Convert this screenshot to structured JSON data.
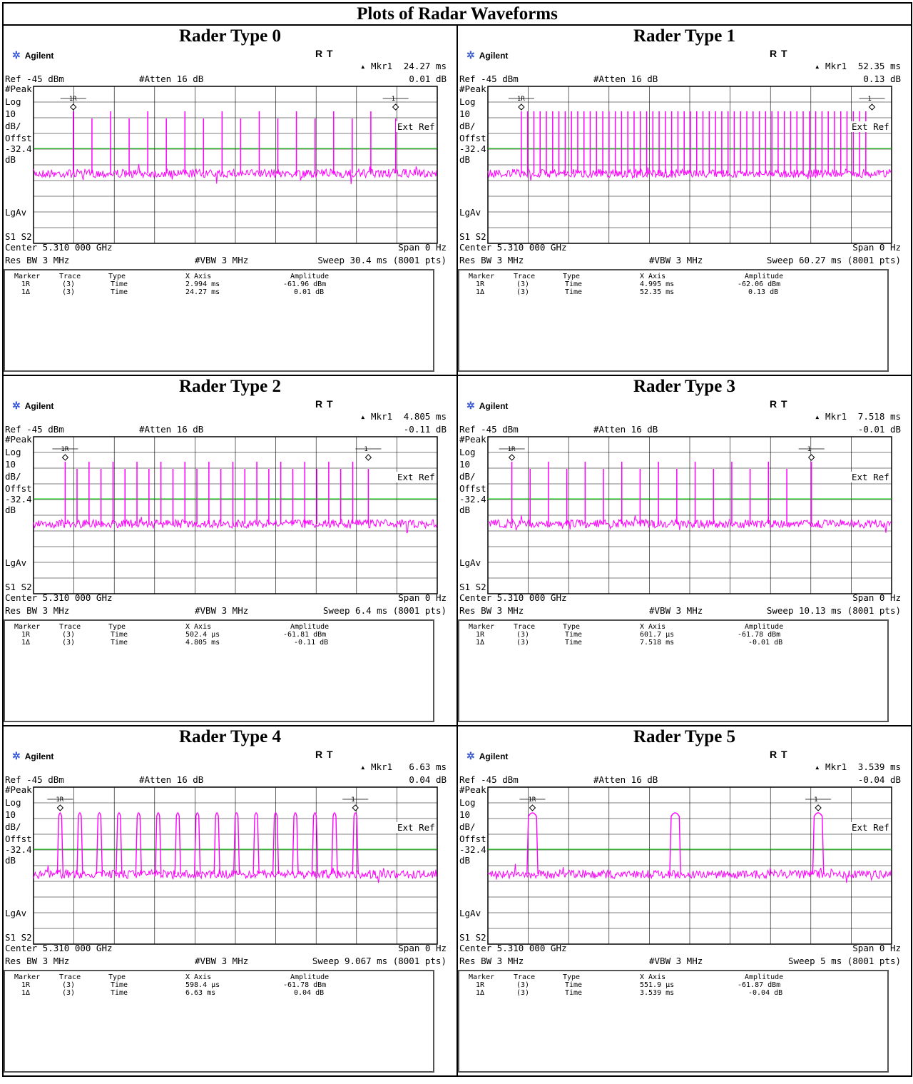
{
  "title": "Plots of Radar Waveforms",
  "common": {
    "brand": "Agilent",
    "status": "R  T",
    "delta_prefix": "▴ Mkr1",
    "ref": "Ref -45 dBm",
    "atten": "#Atten 16 dB",
    "peak": "#Peak",
    "log": "Log",
    "ten": "10",
    "dbdiv": "dB/",
    "offst": "Offst",
    "offst_val": "-32.4",
    "db": "dB",
    "lgav": "LgAv",
    "s1s2": "S1  S2",
    "center": "Center 5.310 000 GHz",
    "span": "Span 0 Hz",
    "resbw": "Res BW 3 MHz",
    "vbw": "#VBW 3 MHz",
    "extref": "Ext Ref",
    "marker_1r": "1R",
    "marker_1": "1",
    "trace_color": "#ff00ff",
    "threshold_color": "#00cc00",
    "table_headers": [
      "Marker",
      "Trace",
      "Type",
      "X Axis",
      "Amplitude"
    ],
    "rows_marker": [
      "1R",
      "1Δ"
    ],
    "rows_trace": [
      "(3)",
      "(3)"
    ],
    "rows_type": [
      "Time",
      "Time"
    ]
  },
  "panels": [
    {
      "title": "Rader Type 0",
      "mkr_time": "24.27 ms",
      "mkr_db": "0.01 dB",
      "sweep": "Sweep 30.4 ms (8001 pts)",
      "x1": "2.994 ms",
      "x2": "24.27 ms",
      "a1": "-61.96 dBm",
      "a2": "0.01 dB"
    },
    {
      "title": "Rader Type 1",
      "mkr_time": "52.35 ms",
      "mkr_db": "0.13 dB",
      "sweep": "Sweep 60.27 ms (8001 pts)",
      "x1": "4.995 ms",
      "x2": "52.35 ms",
      "a1": "-62.06 dBm",
      "a2": "0.13 dB"
    },
    {
      "title": "Rader Type 2",
      "mkr_time": "4.805 ms",
      "mkr_db": "-0.11 dB",
      "sweep": "Sweep 6.4 ms (8001 pts)",
      "x1": "502.4 μs",
      "x2": "4.805 ms",
      "a1": "-61.81 dBm",
      "a2": "-0.11 dB"
    },
    {
      "title": "Rader Type 3",
      "mkr_time": "7.518 ms",
      "mkr_db": "-0.01 dB",
      "sweep": "Sweep 10.13 ms (8001 pts)",
      "x1": "601.7 μs",
      "x2": "7.518 ms",
      "a1": "-61.78 dBm",
      "a2": "-0.01 dB"
    },
    {
      "title": "Rader Type 4",
      "mkr_time": "6.63 ms",
      "mkr_db": "0.04 dB",
      "sweep": "Sweep 9.067 ms (8001 pts)",
      "x1": "598.4 μs",
      "x2": "6.63 ms",
      "a1": "-61.78 dBm",
      "a2": "0.04 dB"
    },
    {
      "title": "Rader Type 5",
      "mkr_time": "3.539 ms",
      "mkr_db": "-0.04 dB",
      "sweep": "Sweep 5 ms (8001 pts)",
      "x1": "551.9 μs",
      "x2": "3.539 ms",
      "a1": "-61.87 dBm",
      "a2": "-0.04 dB"
    }
  ],
  "chart_data": [
    {
      "type": "line",
      "title": "Rader Type 0",
      "xlabel": "Time",
      "ylabel": "dB",
      "xlim": [
        0,
        30.4
      ],
      "x_unit": "ms",
      "markers": [
        {
          "label": "1R",
          "x": 2.994,
          "amplitude_dbm": -61.96
        },
        {
          "label": "1",
          "x": 27.264,
          "delta_db": 0.01
        }
      ],
      "pulse_times_ms": [
        2.994,
        4.4,
        5.8,
        7.2,
        8.6,
        10.0,
        11.4,
        12.8,
        14.2,
        15.6,
        17.0,
        18.4,
        19.8,
        21.2,
        22.6,
        24.0,
        25.4,
        27.264
      ],
      "threshold_offset_db": -32.4
    },
    {
      "type": "line",
      "title": "Rader Type 1",
      "xlabel": "Time",
      "ylabel": "dB",
      "xlim": [
        0,
        60.27
      ],
      "x_unit": "ms",
      "markers": [
        {
          "label": "1R",
          "x": 4.995,
          "amplitude_dbm": -62.06
        },
        {
          "label": "1",
          "x": 57.345,
          "delta_db": 0.13
        }
      ],
      "pulse_interval_ms": 0.935,
      "threshold_offset_db": -32.4
    },
    {
      "type": "line",
      "title": "Rader Type 2",
      "xlabel": "Time",
      "ylabel": "dB",
      "xlim": [
        0,
        6.4
      ],
      "x_unit": "ms",
      "markers": [
        {
          "label": "1R",
          "x": 0.5024,
          "amplitude_dbm": -61.81
        },
        {
          "label": "1",
          "x": 5.3074,
          "delta_db": -0.11
        }
      ],
      "pulse_times_ms": [
        0.5024,
        0.69,
        0.88,
        1.07,
        1.26,
        1.45,
        1.64,
        1.83,
        2.02,
        2.21,
        2.4,
        2.59,
        2.78,
        2.97,
        3.16,
        3.35,
        3.54,
        3.73,
        3.92,
        4.11,
        4.3,
        4.49,
        4.68,
        4.87,
        5.06,
        5.3074
      ],
      "threshold_offset_db": -32.4
    },
    {
      "type": "line",
      "title": "Rader Type 3",
      "xlabel": "Time",
      "ylabel": "dB",
      "xlim": [
        0,
        10.13
      ],
      "x_unit": "ms",
      "markers": [
        {
          "label": "1R",
          "x": 0.6017,
          "amplitude_dbm": -61.78
        },
        {
          "label": "1",
          "x": 8.1197,
          "delta_db": -0.01
        }
      ],
      "pulse_times_ms": [
        0.6017,
        1.06,
        1.52,
        1.98,
        2.44,
        2.9,
        3.36,
        3.82,
        4.28,
        4.74,
        5.2,
        5.66,
        6.12,
        6.58,
        7.04,
        7.5,
        8.1197
      ],
      "threshold_offset_db": -32.4
    },
    {
      "type": "line",
      "title": "Rader Type 4",
      "xlabel": "Time",
      "ylabel": "dB",
      "xlim": [
        0,
        9.067
      ],
      "x_unit": "ms",
      "markers": [
        {
          "label": "1R",
          "x": 0.5984,
          "amplitude_dbm": -61.78
        },
        {
          "label": "1",
          "x": 7.2284,
          "delta_db": 0.04
        }
      ],
      "pulse_times_ms": [
        0.5984,
        1.04,
        1.48,
        1.92,
        2.36,
        2.8,
        3.24,
        3.68,
        4.12,
        4.56,
        5.0,
        5.44,
        5.88,
        6.32,
        6.76,
        7.2284
      ],
      "pulse_width_ms": 0.05,
      "threshold_offset_db": -32.4
    },
    {
      "type": "line",
      "title": "Rader Type 5",
      "xlabel": "Time",
      "ylabel": "dB",
      "xlim": [
        0,
        5
      ],
      "x_unit": "ms",
      "markers": [
        {
          "label": "1R",
          "x": 0.5519,
          "amplitude_dbm": -61.87
        },
        {
          "label": "1",
          "x": 4.0909,
          "delta_db": -0.04
        }
      ],
      "pulse_times_ms": [
        0.5519,
        2.32,
        4.0909
      ],
      "pulse_width_ms": 0.1,
      "threshold_offset_db": -32.4
    }
  ]
}
